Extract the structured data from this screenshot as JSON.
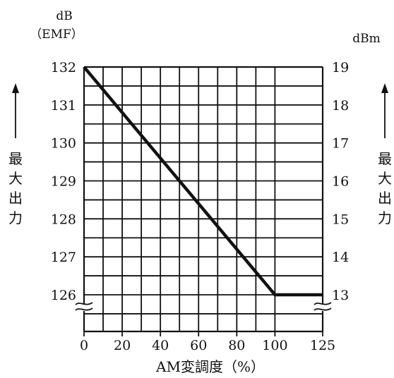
{
  "chart_data": {
    "type": "line",
    "title": "",
    "xlabel": "AM変調度（%）",
    "left_unit_line1": "dB",
    "left_unit_line2": "（EMF）",
    "right_unit": "dBm",
    "side_label_chars": [
      "最",
      "大",
      "出",
      "力"
    ],
    "x_ticks": [
      "0",
      "20",
      "40",
      "60",
      "80",
      "100",
      "125"
    ],
    "x_tick_values": [
      0,
      20,
      40,
      60,
      80,
      100,
      125
    ],
    "xlim": [
      0,
      125
    ],
    "y_left_ticks": [
      "132",
      "131",
      "130",
      "129",
      "128",
      "127",
      "126"
    ],
    "y_left_values": [
      132,
      131,
      130,
      129,
      128,
      127,
      126
    ],
    "y_right_ticks": [
      "19",
      "18",
      "17",
      "16",
      "15",
      "14",
      "13"
    ],
    "ylim": [
      125.1,
      132
    ],
    "axis_break": true,
    "grid": true,
    "line_color": "#111111",
    "series": [
      {
        "x": [
          0,
          100,
          125
        ],
        "y": [
          132,
          126,
          126
        ]
      }
    ]
  }
}
